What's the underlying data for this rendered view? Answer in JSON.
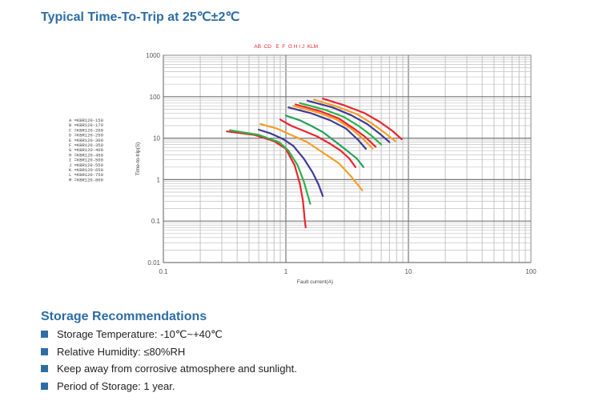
{
  "page": {
    "title": "Typical Time-To-Trip at 25℃±2℃"
  },
  "chart_data": {
    "type": "line",
    "x_scale": "log",
    "y_scale": "log",
    "xlim": [
      0.1,
      100
    ],
    "ylim": [
      0.01,
      1000
    ],
    "x_ticks": [
      "0.1",
      "1",
      "10",
      "100"
    ],
    "y_ticks": [
      "1000",
      "100",
      "10",
      "1",
      "0.1",
      "0.01"
    ],
    "xlabel": "Fault current(A)",
    "ylabel": "Time-to-trip(S)",
    "grid": true,
    "curve_letters_top": "AB  CD   E  F  G H I J  KLM",
    "legend": [
      "A =KBR120-150",
      "B =KBR120-170",
      "C =KBR120-200",
      "D =KBR120-250",
      "E =KBR120-300",
      "F =KBR120-350",
      "G =KBR120-400",
      "H =KBR120-450",
      "I =KBR120-500",
      "J =KBR120-550",
      "K =KBR120-650",
      "L =KBR120-750",
      "M =KBR120-800"
    ],
    "series": [
      {
        "name": "A",
        "color": "#e8262e",
        "x": [
          0.33,
          0.55,
          0.8,
          1.0,
          1.18,
          1.3,
          1.38,
          1.42,
          1.45
        ],
        "y": [
          14.5,
          12,
          8.5,
          5.5,
          2.2,
          0.8,
          0.3,
          0.12,
          0.07
        ]
      },
      {
        "name": "B",
        "color": "#2db34a",
        "x": [
          0.35,
          0.6,
          0.88,
          1.05,
          1.25,
          1.4,
          1.5,
          1.58
        ],
        "y": [
          15.5,
          12,
          8,
          5,
          2.2,
          0.9,
          0.45,
          0.26
        ]
      },
      {
        "name": "C",
        "color": "#3f3c94",
        "x": [
          0.6,
          0.75,
          0.95,
          1.15,
          1.4,
          1.65,
          1.85,
          2.0
        ],
        "y": [
          16,
          13,
          9.5,
          6.5,
          3.2,
          1.5,
          0.75,
          0.4
        ]
      },
      {
        "name": "D",
        "color": "#f49e28",
        "x": [
          0.62,
          0.85,
          1.1,
          1.5,
          2.0,
          2.7,
          3.4,
          4.2
        ],
        "y": [
          22,
          17,
          12,
          8,
          4.5,
          2.5,
          1.2,
          0.55
        ]
      },
      {
        "name": "E",
        "color": "#e8262e",
        "x": [
          0.9,
          1.1,
          1.4,
          1.8,
          2.3,
          2.8,
          3.3,
          3.7
        ],
        "y": [
          28,
          20,
          15,
          11,
          7.3,
          5,
          3.2,
          2.0
        ]
      },
      {
        "name": "F",
        "color": "#24a25b",
        "x": [
          1.0,
          1.3,
          1.6,
          2.0,
          2.5,
          3.1,
          3.8,
          4.3
        ],
        "y": [
          35,
          27,
          20,
          14,
          8.5,
          5.2,
          3.2,
          2.0
        ]
      },
      {
        "name": "G",
        "color": "#3f3c94",
        "x": [
          1.05,
          1.6,
          2.3,
          3.1,
          3.9,
          4.5
        ],
        "y": [
          55,
          40,
          27,
          17,
          9.0,
          5.5
        ]
      },
      {
        "name": "H",
        "color": "#f49e28",
        "x": [
          1.15,
          1.8,
          2.6,
          3.4,
          4.2,
          5.1
        ],
        "y": [
          60,
          42,
          28,
          17,
          10,
          5.6
        ]
      },
      {
        "name": "I",
        "color": "#e8262e",
        "x": [
          1.2,
          1.9,
          2.7,
          3.5,
          4.4,
          5.4
        ],
        "y": [
          65,
          45,
          30,
          18,
          11,
          6.2
        ]
      },
      {
        "name": "J",
        "color": "#2db34a",
        "x": [
          1.3,
          2.1,
          3.0,
          4.0,
          5.0,
          6.0
        ],
        "y": [
          70,
          48,
          32,
          19,
          11.5,
          7.0
        ]
      },
      {
        "name": "K",
        "color": "#3f3c94",
        "x": [
          1.5,
          2.4,
          3.4,
          4.6,
          5.8,
          7.0
        ],
        "y": [
          80,
          55,
          36,
          22,
          13,
          8.0
        ]
      },
      {
        "name": "L",
        "color": "#f49e28",
        "x": [
          1.7,
          2.6,
          3.8,
          5.0,
          6.4,
          7.8
        ],
        "y": [
          85,
          58,
          38,
          23,
          13.5,
          8.5
        ]
      },
      {
        "name": "M",
        "color": "#e8262e",
        "x": [
          2.0,
          3.0,
          4.4,
          5.8,
          7.4,
          8.8
        ],
        "y": [
          90,
          62,
          40,
          25,
          15,
          9.5
        ]
      }
    ]
  },
  "storage": {
    "title": "Storage Recommendations",
    "items": [
      "Storage Temperature: -10℃~+40℃",
      "Relative Humidity: ≤80%RH",
      "Keep away from corrosive atmosphere and sunlight.",
      "Period of Storage: 1 year."
    ]
  },
  "colors": {
    "heading": "#2e6da4",
    "bullet": "#2e6da4",
    "grid": "#9a9a9a"
  }
}
